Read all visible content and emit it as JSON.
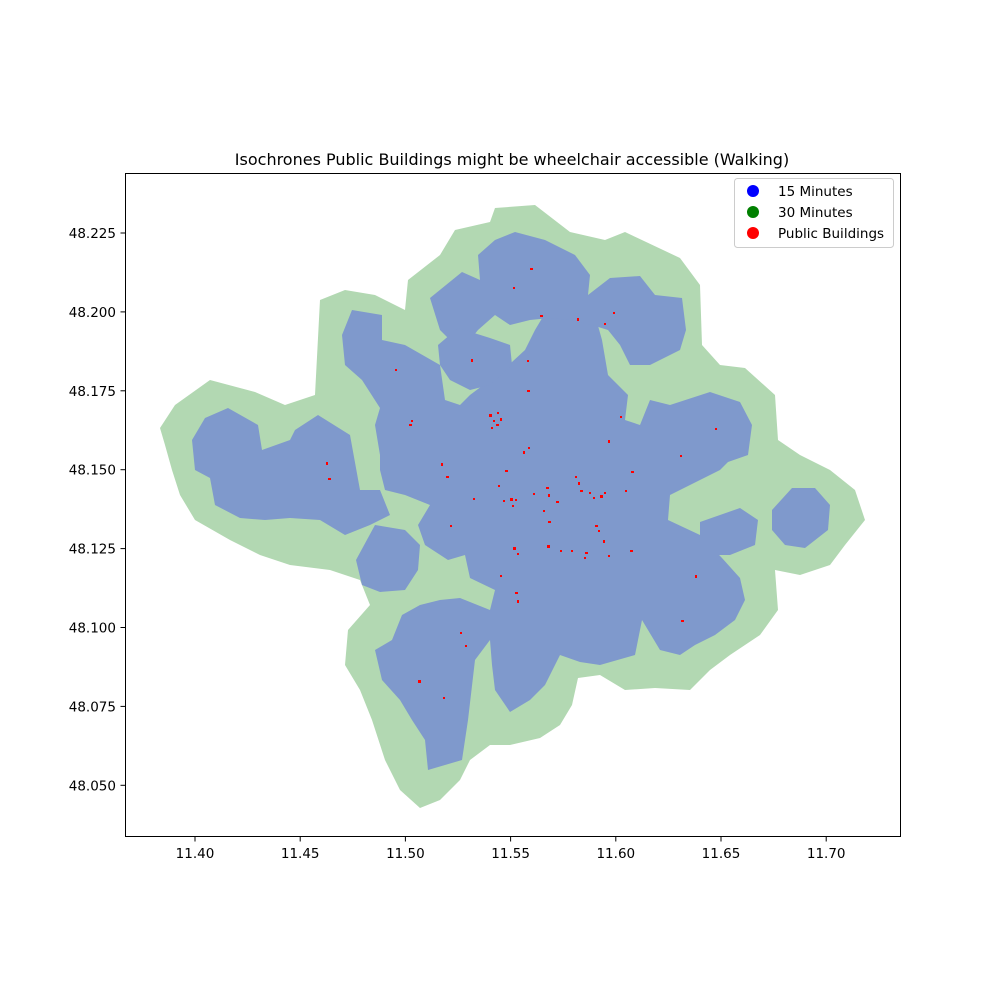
{
  "title": "Isochrones Public Buildings might be wheelchair accessible (Walking)",
  "axes": {
    "x_ticks": [
      "11.40",
      "11.45",
      "11.50",
      "11.55",
      "11.60",
      "11.65",
      "11.70"
    ],
    "y_ticks": [
      "48.225",
      "48.200",
      "48.175",
      "48.150",
      "48.125",
      "48.100",
      "48.075",
      "48.050"
    ],
    "x_range": [
      11.366,
      11.734
    ],
    "y_range": [
      48.034,
      48.244
    ]
  },
  "legend": {
    "placement": "top-right",
    "items": [
      {
        "label": "15 Minutes",
        "color": "#0000ff"
      },
      {
        "label": "30 Minutes",
        "color": "#008000"
      },
      {
        "label": "Public Buildings",
        "color": "#ff0000"
      }
    ]
  },
  "layers": {
    "isochrone_30": {
      "label": "30 Minutes",
      "fill": "#b2d8b2"
    },
    "isochrone_15": {
      "label": "15 Minutes",
      "fill": "#7f99cc"
    },
    "public_buildings": {
      "label": "Public Buildings",
      "fill": "#ff0000"
    }
  }
}
